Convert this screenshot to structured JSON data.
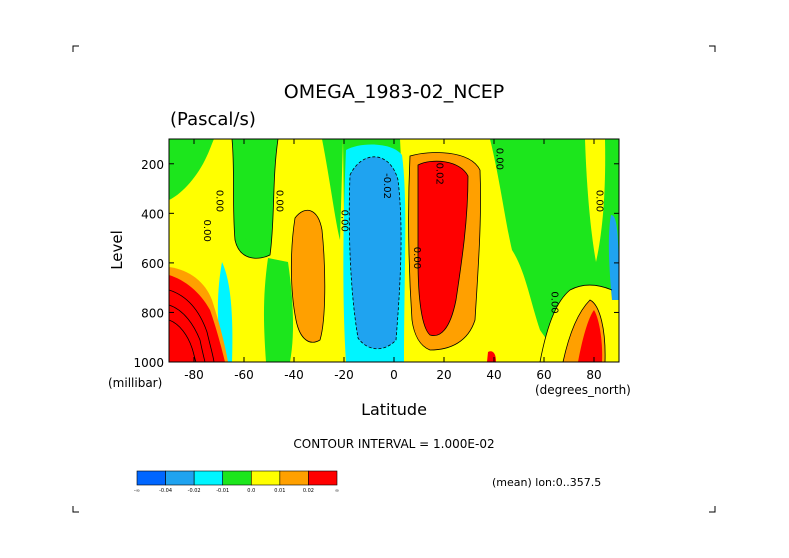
{
  "chart_data": {
    "type": "heatmap",
    "title": "OMEGA_1983-02_NCEP",
    "units": "(Pascal/s)",
    "xlabel": "Latitude",
    "xunits": "(degrees_north)",
    "ylabel": "Level",
    "yunits": "(millibar)",
    "xlim": [
      -90,
      90
    ],
    "ylim": [
      1000,
      100
    ],
    "x_ticks": [
      -80,
      -60,
      -40,
      -20,
      0,
      20,
      40,
      60,
      80
    ],
    "x_tick_labels": [
      "-80",
      "-60",
      "-40",
      "-20",
      "0",
      "20",
      "40",
      "60",
      "80"
    ],
    "y_ticks": [
      200,
      400,
      600,
      800,
      1000
    ],
    "y_tick_labels": [
      "200",
      "400",
      "600",
      "800",
      "1000"
    ],
    "contour_interval_text": "CONTOUR INTERVAL = 1.000E-02",
    "mean_text": "(mean) lon:0..357.5",
    "contour_labels": [
      {
        "text": "0.00",
        "lat": -76,
        "lev": 470
      },
      {
        "text": "0.00",
        "lat": -71,
        "lev": 350
      },
      {
        "text": "0.00",
        "lat": -47,
        "lev": 350
      },
      {
        "text": "0.00",
        "lat": -21,
        "lev": 430
      },
      {
        "text": "-0.02",
        "lat": -4,
        "lev": 290
      },
      {
        "text": "0.00",
        "lat": 8,
        "lev": 580
      },
      {
        "text": "0.02",
        "lat": 17,
        "lev": 240
      },
      {
        "text": "0.00",
        "lat": 41,
        "lev": 180
      },
      {
        "text": "0.00",
        "lat": 63,
        "lev": 760
      },
      {
        "text": "0.00",
        "lat": 81,
        "lev": 350
      }
    ],
    "colorbar": {
      "colors": [
        "#0066ff",
        "#1fa3f0",
        "#00f5ff",
        "#1ce61c",
        "#ffff00",
        "#ffa000",
        "#ff0000"
      ],
      "labels": [
        "-∞",
        "-0.04",
        "-0.02",
        "-0.01",
        "0.0",
        "0.01",
        "0.02",
        "∞"
      ]
    }
  }
}
